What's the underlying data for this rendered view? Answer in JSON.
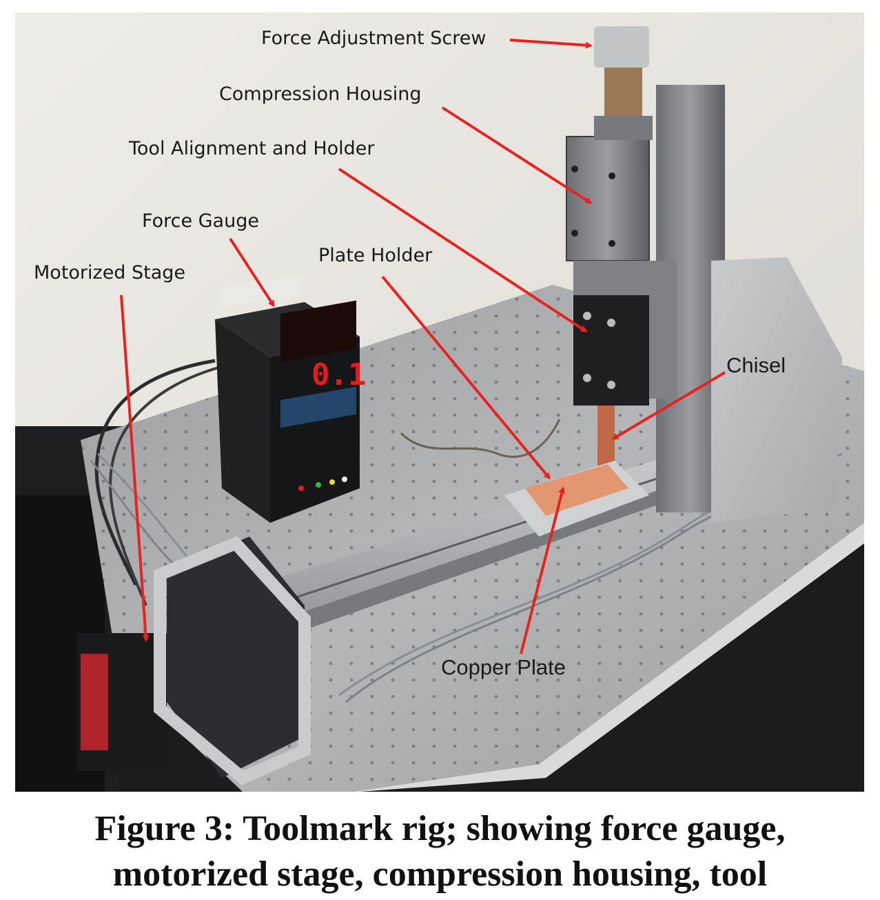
{
  "labels": {
    "force_adjustment_screw": "Force Adjustment Screw",
    "compression_housing": "Compression Housing",
    "tool_alignment_holder": "Tool Alignment and Holder",
    "force_gauge": "Force Gauge",
    "plate_holder": "Plate Holder",
    "motorized_stage": "Motorized Stage",
    "chisel": "Chisel",
    "copper_plate": "Copper Plate"
  },
  "gauge_display": "0.1",
  "caption": {
    "line1": "Figure 3: Toolmark rig; showing force gauge,",
    "line2": "motorized stage, compression housing, tool"
  },
  "colors": {
    "arrow": "#e8231f",
    "wall": "#eceae4",
    "table": "#a7a9ab",
    "copper": "#e39770",
    "display": "#e51a1a"
  }
}
